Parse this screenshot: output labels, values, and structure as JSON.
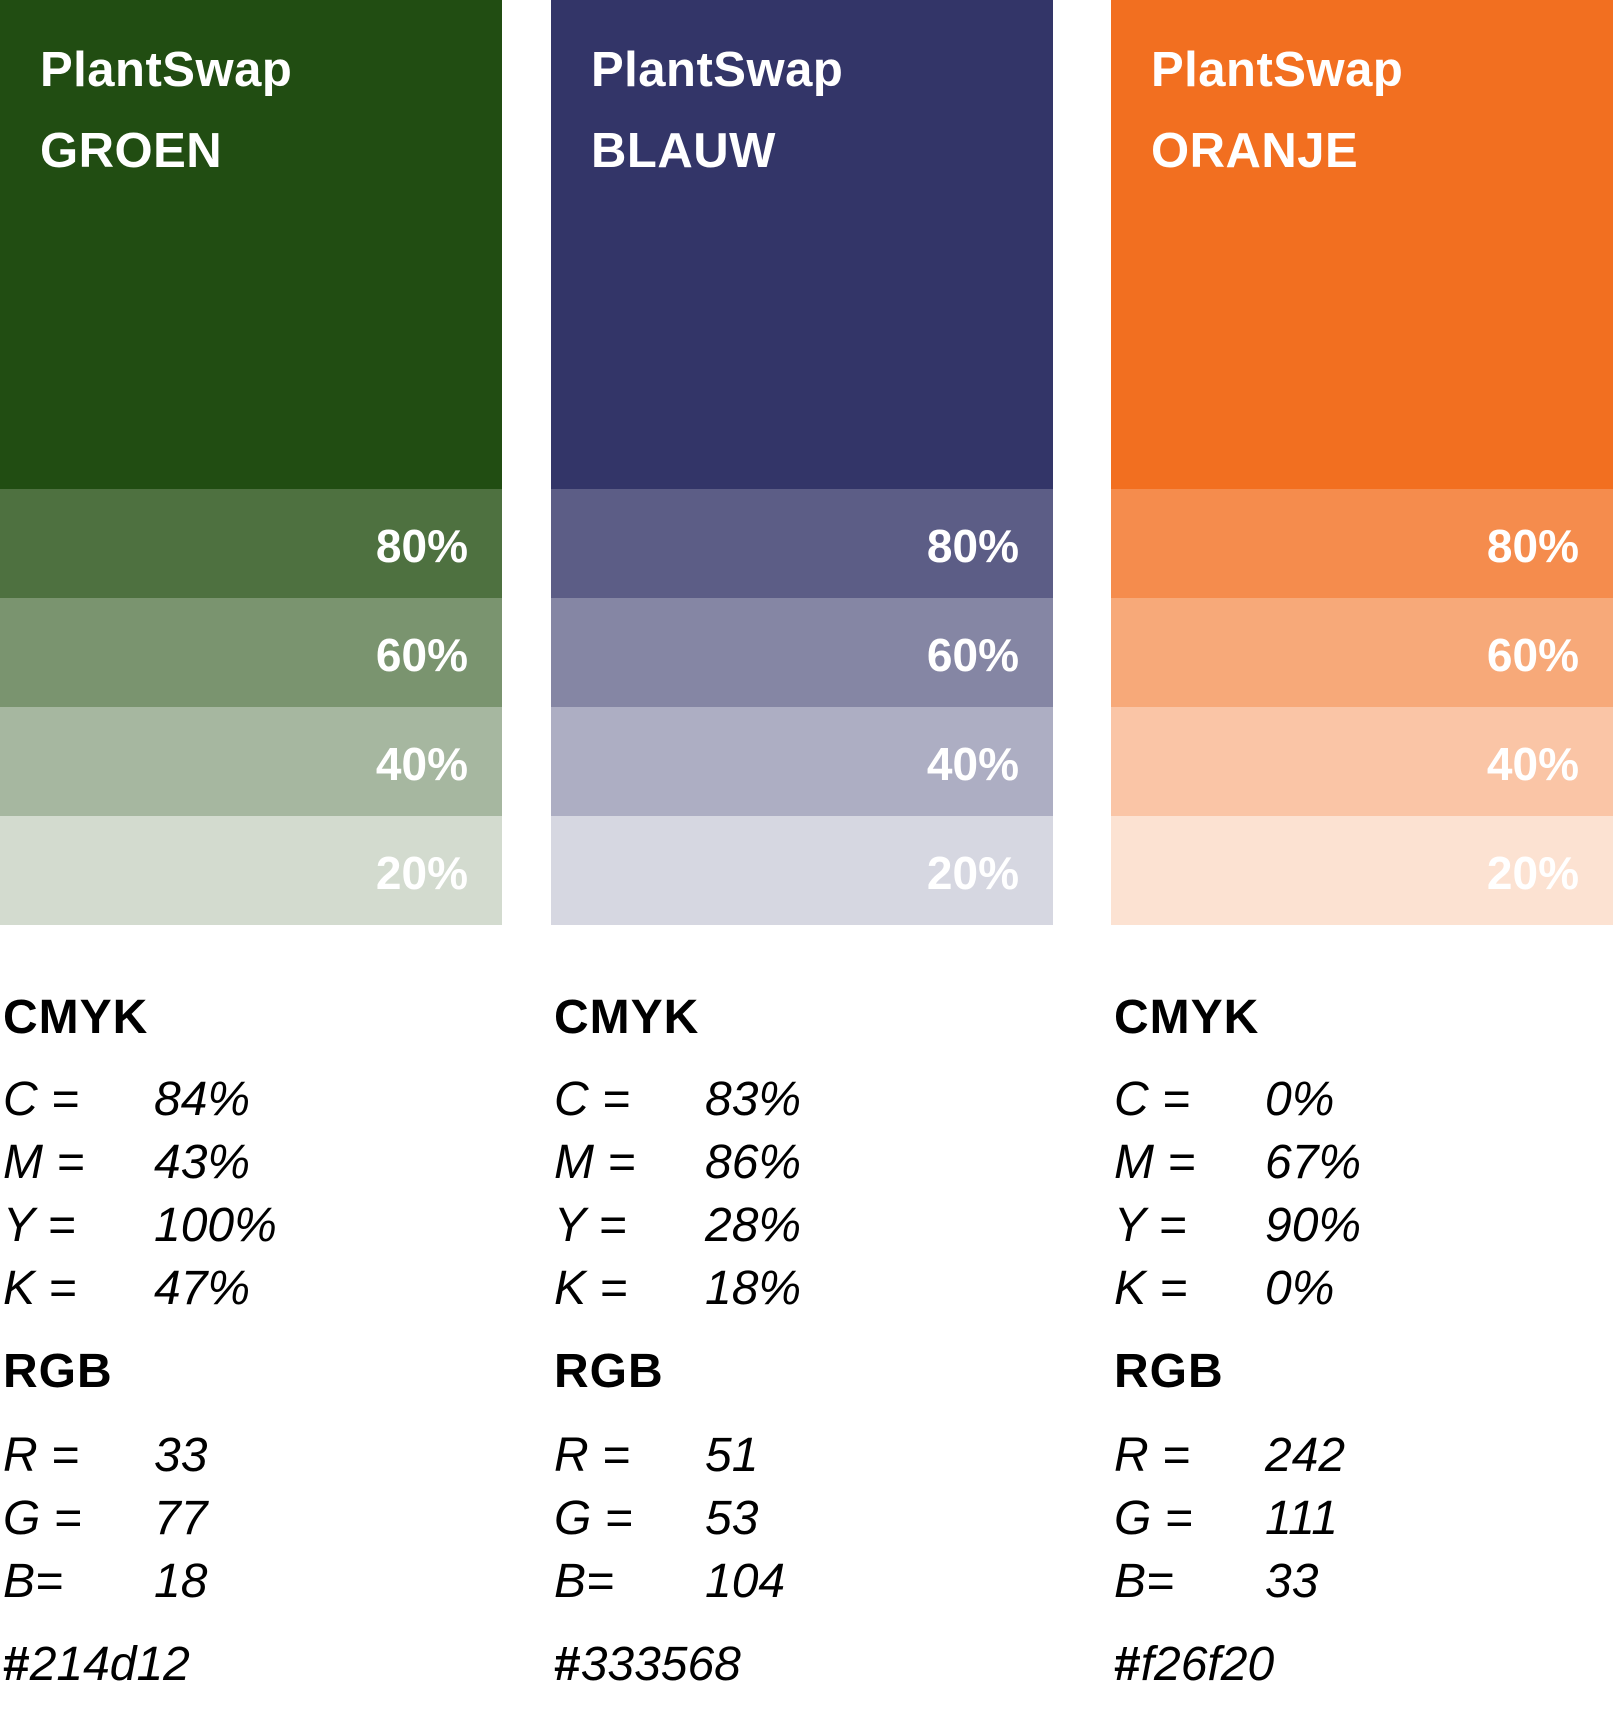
{
  "colors": [
    {
      "brand": "PlantSwap",
      "name": "GROEN",
      "base_color": "#214d12",
      "tints": [
        {
          "label": "80%",
          "color": "#4e7140"
        },
        {
          "label": "60%",
          "color": "#7a946f"
        },
        {
          "label": "40%",
          "color": "#a6b7a0"
        },
        {
          "label": "20%",
          "color": "#d3dbcf"
        }
      ],
      "cmyk_title": "CMYK",
      "cmyk": [
        {
          "key": "C =",
          "value": "84%"
        },
        {
          "key": "M =",
          "value": "43%"
        },
        {
          "key": "Y =",
          "value": "100%"
        },
        {
          "key": "K =",
          "value": "47%"
        }
      ],
      "rgb_title": "RGB",
      "rgb": [
        {
          "key": "R =",
          "value": "33"
        },
        {
          "key": "G =",
          "value": "77"
        },
        {
          "key": "B=",
          "value": "18"
        }
      ],
      "hex_hash": "#",
      "hex_value": "214d12"
    },
    {
      "brand": "PlantSwap",
      "name": "BLAUW",
      "base_color": "#333568",
      "tints": [
        {
          "label": "80%",
          "color": "#5c5d86"
        },
        {
          "label": "60%",
          "color": "#8586a4"
        },
        {
          "label": "40%",
          "color": "#adaec3"
        },
        {
          "label": "20%",
          "color": "#d6d7e1"
        }
      ],
      "cmyk_title": "CMYK",
      "cmyk": [
        {
          "key": "C =",
          "value": "83%"
        },
        {
          "key": "M =",
          "value": "86%"
        },
        {
          "key": "Y =",
          "value": "28%"
        },
        {
          "key": "K =",
          "value": "18%"
        }
      ],
      "rgb_title": "RGB",
      "rgb": [
        {
          "key": "R =",
          "value": "51"
        },
        {
          "key": "G =",
          "value": "53"
        },
        {
          "key": "B=",
          "value": "104"
        }
      ],
      "hex_hash": "#",
      "hex_value": "333568"
    },
    {
      "brand": "PlantSwap",
      "name": "ORANJE",
      "base_color": "#f26f20",
      "tints": [
        {
          "label": "80%",
          "color": "#f58c4d"
        },
        {
          "label": "60%",
          "color": "#f7a979"
        },
        {
          "label": "40%",
          "color": "#fac5a6"
        },
        {
          "label": "20%",
          "color": "#fce2d2"
        }
      ],
      "cmyk_title": "CMYK",
      "cmyk": [
        {
          "key": "C =",
          "value": "0%"
        },
        {
          "key": "M =",
          "value": "67%"
        },
        {
          "key": "Y =",
          "value": "90%"
        },
        {
          "key": "K =",
          "value": "0%"
        }
      ],
      "rgb_title": "RGB",
      "rgb": [
        {
          "key": "R =",
          "value": "242"
        },
        {
          "key": "G =",
          "value": "111"
        },
        {
          "key": "B=",
          "value": "33"
        }
      ],
      "hex_hash": "#",
      "hex_value": "f26f20"
    }
  ]
}
